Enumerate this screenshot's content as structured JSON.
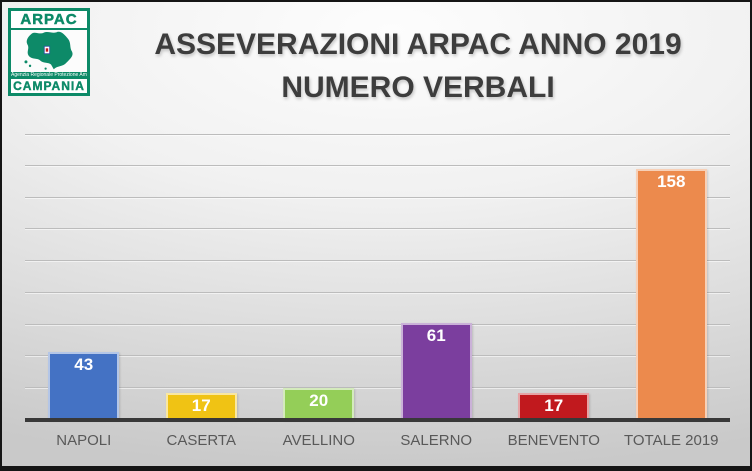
{
  "logo": {
    "arpac_label": "ARPAC",
    "agency_line": "Agenzia Regionale Protezione Ambientale",
    "campania_label": "CAMPANIA",
    "green": "#0d8a68"
  },
  "header": {
    "title_line1": "ASSEVERAZIONI ARPAC ANNO 2019",
    "title_line2": "NUMERO VERBALI"
  },
  "chart_data": {
    "type": "bar",
    "title": "ASSEVERAZIONI ARPAC ANNO 2019 NUMERO VERBALI",
    "categories": [
      "NAPOLI",
      "CASERTA",
      "AVELLINO",
      "SALERNO",
      "BENEVENTO",
      "TOTALE 2019"
    ],
    "values": [
      43,
      17,
      20,
      61,
      17,
      158
    ],
    "bar_colors": [
      "#4472C4",
      "#F0C314",
      "#94CE58",
      "#7B3E9E",
      "#C1191E",
      "#EC8A4D"
    ],
    "value_label_color": "#FFFFFF",
    "ylim": [
      0,
      180
    ],
    "gridline_interval": 20,
    "grid": true,
    "legend": "none",
    "xlabel": "",
    "ylabel": ""
  }
}
